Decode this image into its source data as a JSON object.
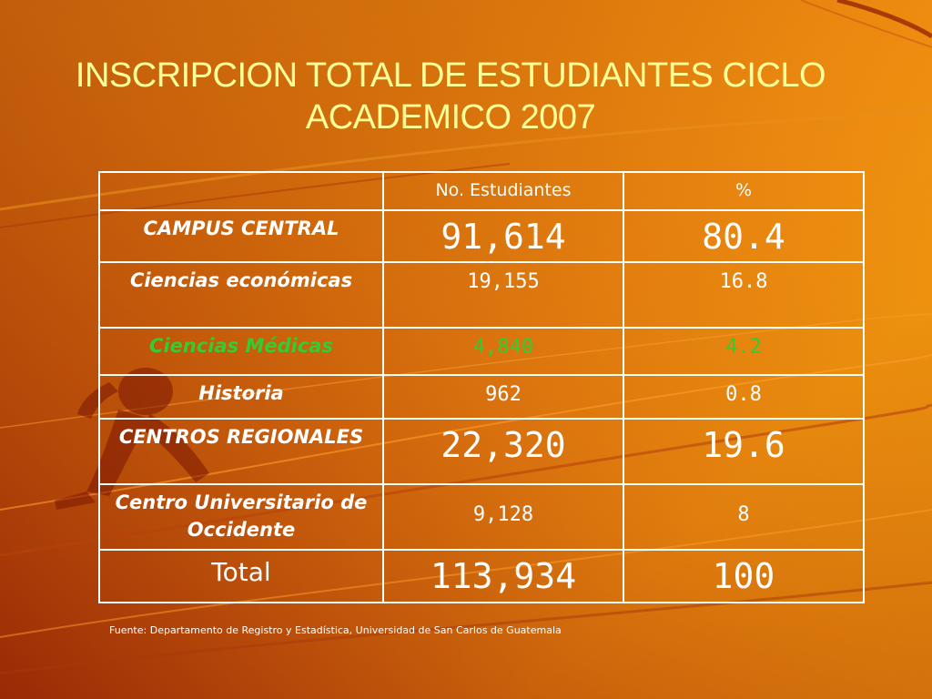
{
  "slide": {
    "title": "INSCRIPCION TOTAL DE ESTUDIANTES CICLO ACADEMICO 2007",
    "source": "Fuente: Departamento de Registro y Estadística, Universidad de San Carlos de Guatemala"
  },
  "table": {
    "headers": [
      "",
      "No. Estudiantes",
      "%"
    ],
    "rows": [
      {
        "label": "CAMPUS CENTRAL",
        "students": "91,614",
        "percent": "80.4"
      },
      {
        "label": "Ciencias económicas",
        "students": "19,155",
        "percent": "16.8"
      },
      {
        "label": "Ciencias Médicas",
        "students": "4,840",
        "percent": "4.2"
      },
      {
        "label": "Historia",
        "students": "962",
        "percent": "0.8"
      },
      {
        "label": "CENTROS REGIONALES",
        "students": "22,320",
        "percent": "19.6"
      },
      {
        "label": "Centro Universitario de Occidente",
        "students": "9,128",
        "percent": "8"
      },
      {
        "label": "Total",
        "students": "113,934",
        "percent": "100"
      }
    ]
  },
  "colors": {
    "title": "#ffff99",
    "highlight_row": "#33cc33",
    "text": "#ffffff"
  }
}
